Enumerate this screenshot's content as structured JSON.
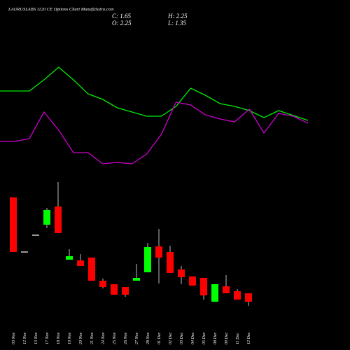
{
  "chart_data": {
    "type": "candlestick",
    "title": "LAURUSLABS 1120 CE Options Chart MunafaSutra.com",
    "summary": [
      "C: 1.65",
      "H: 2.25",
      "O: 2.25",
      "L: 1.35"
    ],
    "categories": [
      "03 Nov",
      "12 Nov",
      "13 Nov",
      "17 Nov",
      "18 Nov",
      "19 Nov",
      "20 Nov",
      "21 Nov",
      "24 Nov",
      "25 Nov",
      "26 Nov",
      "27 Nov",
      "28 Nov",
      "01 Dec",
      "02 Dec",
      "03 Dec",
      "04 Dec",
      "05 Dec",
      "08 Dec",
      "09 Dec",
      "11 Dec",
      "12 Dec"
    ],
    "open": [
      9.1,
      5.2,
      6.4,
      7.15,
      8.45,
      4.65,
      4.6,
      4.8,
      3.15,
      2.9,
      2.7,
      3.15,
      3.75,
      5.6,
      5.2,
      3.95,
      3.45,
      3.35,
      1.65,
      2.75,
      2.4,
      2.25
    ],
    "high": [
      9.1,
      5.2,
      6.4,
      8.35,
      10.2,
      5.4,
      5.05,
      4.8,
      3.3,
      2.9,
      2.7,
      4.35,
      5.85,
      6.85,
      5.65,
      4.2,
      3.45,
      3.35,
      2.9,
      3.55,
      2.55,
      2.25
    ],
    "low": [
      5.2,
      5.2,
      6.4,
      6.9,
      6.55,
      4.65,
      4.2,
      3.15,
      2.6,
      2.15,
      2.0,
      3.15,
      3.75,
      2.95,
      3.7,
      2.9,
      2.8,
      1.8,
      1.65,
      2.25,
      1.8,
      1.35
    ],
    "close": [
      5.2,
      5.2,
      6.4,
      8.2,
      6.55,
      4.9,
      4.2,
      3.15,
      2.7,
      2.15,
      2.15,
      3.35,
      5.55,
      4.8,
      3.7,
      3.4,
      2.8,
      2.1,
      2.9,
      2.25,
      1.8,
      1.65
    ],
    "up_color": "#00ff00",
    "down_color": "#ff0000",
    "doji_color": "#ffffff",
    "ylim": [
      1.2,
      10.2
    ],
    "y2lim": [
      0,
      100
    ],
    "series": [
      {
        "color": "#00ee00",
        "axis": "y2",
        "values": [
          65,
          65,
          65,
          73,
          82,
          73,
          63,
          59,
          53,
          50,
          47,
          47,
          54,
          67,
          62,
          56,
          54,
          51,
          46,
          51,
          47.5,
          44
        ]
      },
      {
        "color": "#cc00cc",
        "axis": "y2",
        "values": [
          29,
          29,
          31,
          50,
          37,
          21,
          21,
          13,
          14,
          13,
          20,
          34,
          57,
          55,
          48,
          45,
          43,
          52,
          35,
          49,
          47,
          42
        ]
      }
    ]
  }
}
